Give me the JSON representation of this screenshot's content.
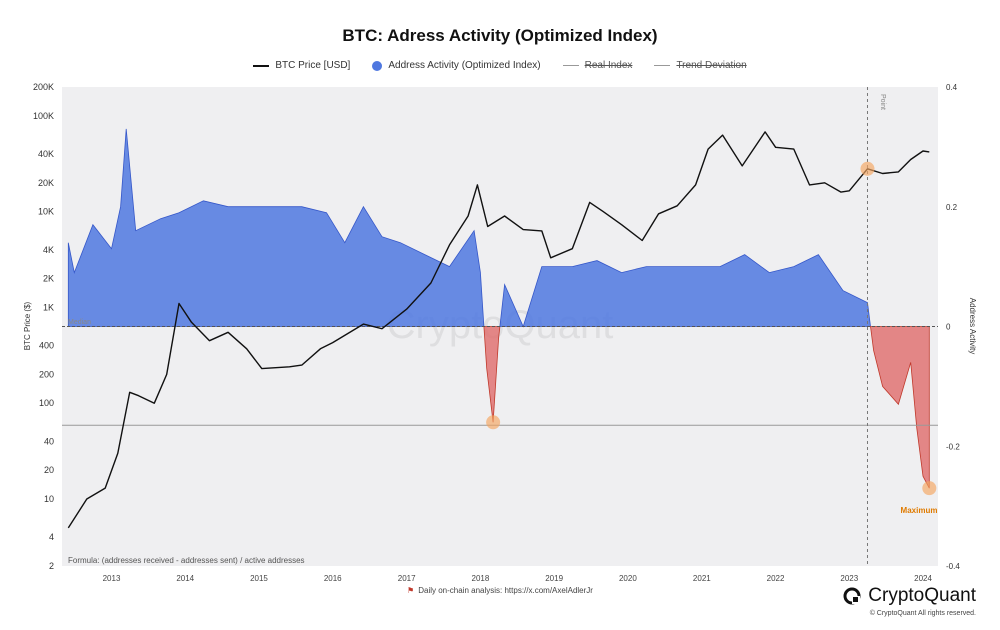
{
  "chart_data": {
    "type": "area",
    "title": "BTC: Adress Activity (Optimized Index)",
    "legend": [
      {
        "name": "BTC Price [USD]",
        "color": "#111111",
        "marker": "line",
        "active": true
      },
      {
        "name": "Address Activity (Optimized Index)",
        "color": "#4f78e0",
        "marker": "dot",
        "active": true
      },
      {
        "name": "Real Index",
        "color": "#999999",
        "marker": "line",
        "active": false
      },
      {
        "name": "Trend Deviation",
        "color": "#999999",
        "marker": "line",
        "active": false
      }
    ],
    "legend_position": "top-center",
    "y_left": {
      "label": "BTC Price ($)",
      "scale": "log",
      "range": [
        2,
        200000
      ],
      "ticks": [
        2,
        4,
        10,
        20,
        40,
        100,
        200,
        400,
        "1K",
        "2K",
        "4K",
        "10K",
        "20K",
        "40K",
        "100K",
        "200K"
      ]
    },
    "y_right": {
      "label": "Address Activity",
      "scale": "linear",
      "range": [
        -0.4,
        0.4
      ],
      "ticks": [
        "0.4",
        "0.2",
        "0",
        "-0.2",
        "-0.4"
      ]
    },
    "x": {
      "ticks": [
        "2013",
        "2014",
        "2015",
        "2016",
        "2017",
        "2018",
        "2019",
        "2020",
        "2021",
        "2022",
        "2023",
        "2024"
      ]
    },
    "grid": false,
    "colors": {
      "positive": "#4f78e0",
      "negative": "#e06b6b",
      "price": "#111111",
      "highlight": "#f4a460"
    },
    "series": [
      {
        "name": "BTC Price [USD]",
        "points": [
          [
            "2012-06-01",
            5
          ],
          [
            "2012-09-01",
            10
          ],
          [
            "2012-12-01",
            13
          ],
          [
            "2013-02-01",
            30
          ],
          [
            "2013-04-01",
            130
          ],
          [
            "2013-05-15",
            120
          ],
          [
            "2013-08-01",
            100
          ],
          [
            "2013-10-01",
            200
          ],
          [
            "2013-12-01",
            1100
          ],
          [
            "2014-02-01",
            700
          ],
          [
            "2014-05-01",
            450
          ],
          [
            "2014-08-01",
            550
          ],
          [
            "2014-11-01",
            370
          ],
          [
            "2015-01-15",
            230
          ],
          [
            "2015-06-01",
            240
          ],
          [
            "2015-08-01",
            250
          ],
          [
            "2015-11-01",
            370
          ],
          [
            "2016-01-01",
            430
          ],
          [
            "2016-06-01",
            670
          ],
          [
            "2016-09-01",
            600
          ],
          [
            "2017-01-01",
            960
          ],
          [
            "2017-05-01",
            1800
          ],
          [
            "2017-08-01",
            4500
          ],
          [
            "2017-11-01",
            9000
          ],
          [
            "2017-12-17",
            19000
          ],
          [
            "2018-02-06",
            7000
          ],
          [
            "2018-05-01",
            9000
          ],
          [
            "2018-08-01",
            6500
          ],
          [
            "2018-11-01",
            6300
          ],
          [
            "2018-12-15",
            3300
          ],
          [
            "2019-04-01",
            4100
          ],
          [
            "2019-06-26",
            12500
          ],
          [
            "2019-09-01",
            10000
          ],
          [
            "2019-12-01",
            7300
          ],
          [
            "2020-03-12",
            5000
          ],
          [
            "2020-06-01",
            9500
          ],
          [
            "2020-09-01",
            11500
          ],
          [
            "2020-12-01",
            19000
          ],
          [
            "2021-02-01",
            45000
          ],
          [
            "2021-04-14",
            63000
          ],
          [
            "2021-07-20",
            30000
          ],
          [
            "2021-11-10",
            68000
          ],
          [
            "2022-01-01",
            47000
          ],
          [
            "2022-04-01",
            45000
          ],
          [
            "2022-06-18",
            19000
          ],
          [
            "2022-09-01",
            20000
          ],
          [
            "2022-11-21",
            16000
          ],
          [
            "2023-01-01",
            16500
          ],
          [
            "2023-04-01",
            28000
          ],
          [
            "2023-06-15",
            25000
          ],
          [
            "2023-09-01",
            26000
          ],
          [
            "2023-11-01",
            35000
          ],
          [
            "2024-01-01",
            43000
          ],
          [
            "2024-02-01",
            42000
          ]
        ]
      },
      {
        "name": "Address Activity (Optimized Index)",
        "points": [
          [
            "2012-06-01",
            0.14
          ],
          [
            "2012-07-01",
            0.09
          ],
          [
            "2012-10-01",
            0.17
          ],
          [
            "2013-01-01",
            0.13
          ],
          [
            "2013-02-15",
            0.2
          ],
          [
            "2013-03-15",
            0.33
          ],
          [
            "2013-05-01",
            0.16
          ],
          [
            "2013-09-01",
            0.18
          ],
          [
            "2013-12-01",
            0.19
          ],
          [
            "2014-04-01",
            0.21
          ],
          [
            "2014-08-01",
            0.2
          ],
          [
            "2014-12-01",
            0.2
          ],
          [
            "2015-04-01",
            0.2
          ],
          [
            "2015-08-01",
            0.2
          ],
          [
            "2015-12-01",
            0.19
          ],
          [
            "2016-03-01",
            0.14
          ],
          [
            "2016-06-01",
            0.2
          ],
          [
            "2016-09-01",
            0.15
          ],
          [
            "2016-12-01",
            0.14
          ],
          [
            "2017-04-01",
            0.12
          ],
          [
            "2017-08-01",
            0.1
          ],
          [
            "2017-12-01",
            0.16
          ],
          [
            "2018-01-01",
            0.09
          ],
          [
            "2018-02-01",
            -0.07
          ],
          [
            "2018-03-05",
            -0.16
          ],
          [
            "2018-04-01",
            -0.02
          ],
          [
            "2018-05-01",
            0.07
          ],
          [
            "2018-08-01",
            0.0
          ],
          [
            "2018-11-01",
            0.1
          ],
          [
            "2019-04-01",
            0.1
          ],
          [
            "2019-08-01",
            0.11
          ],
          [
            "2019-12-01",
            0.09
          ],
          [
            "2020-04-01",
            0.1
          ],
          [
            "2020-08-01",
            0.1
          ],
          [
            "2020-12-01",
            0.1
          ],
          [
            "2021-04-01",
            0.1
          ],
          [
            "2021-08-01",
            0.12
          ],
          [
            "2021-12-01",
            0.09
          ],
          [
            "2022-04-01",
            0.1
          ],
          [
            "2022-08-01",
            0.12
          ],
          [
            "2022-12-01",
            0.06
          ],
          [
            "2023-04-01",
            0.04
          ],
          [
            "2023-05-01",
            -0.04
          ],
          [
            "2023-06-15",
            -0.1
          ],
          [
            "2023-09-01",
            -0.13
          ],
          [
            "2023-11-01",
            -0.06
          ],
          [
            "2023-12-01",
            -0.17
          ],
          [
            "2024-01-01",
            -0.25
          ],
          [
            "2024-02-01",
            -0.27
          ]
        ]
      }
    ],
    "annotations": {
      "watermark": "CryptoQuant",
      "median_label": "Median",
      "point_label": "Point",
      "maximum_label": "Maximum",
      "formula": "Formula: (addresses received - addresses sent) / active addresses",
      "reference_line_activity": -0.165,
      "point_date": "2023-04-01"
    }
  },
  "footer": {
    "source": "Daily on-chain analysis: https://x.com/AxelAdlerJr",
    "brand": "CryptoQuant",
    "copyright": "© CryptoQuant All rights reserved."
  }
}
